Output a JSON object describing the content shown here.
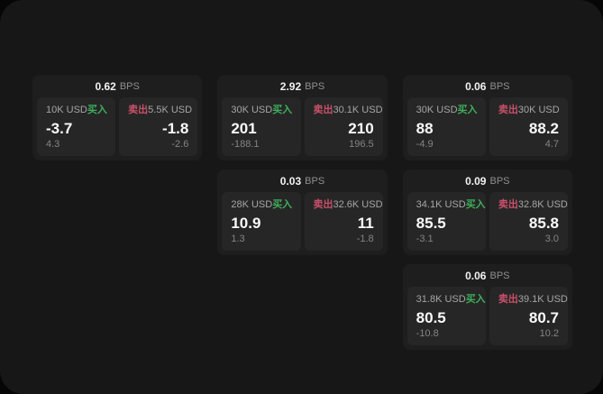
{
  "colors": {
    "buy_green": "#3fae5c",
    "sell_red": "#c9506a",
    "page_bg": "#171717",
    "card_bg": "#1e1e1e",
    "panel_bg": "#262626"
  },
  "cards": [
    {
      "row": 1,
      "col": 1,
      "bps": "0.62",
      "bps_unit": "BPS",
      "buy": {
        "amount": "10K USD",
        "side": "买入",
        "value": "-3.7",
        "sub": "4.3"
      },
      "sell": {
        "side": "卖出",
        "amount": "5.5K USD",
        "value": "-1.8",
        "sub": "-2.6"
      }
    },
    {
      "row": 1,
      "col": 2,
      "bps": "2.92",
      "bps_unit": "BPS",
      "buy": {
        "amount": "30K USD",
        "side": "买入",
        "value": "201",
        "sub": "-188.1"
      },
      "sell": {
        "side": "卖出",
        "amount": "30.1K USD",
        "value": "210",
        "sub": "196.5"
      }
    },
    {
      "row": 1,
      "col": 3,
      "bps": "0.06",
      "bps_unit": "BPS",
      "buy": {
        "amount": "30K USD",
        "side": "买入",
        "value": "88",
        "sub": "-4.9"
      },
      "sell": {
        "side": "卖出",
        "amount": "30K USD",
        "value": "88.2",
        "sub": "4.7"
      }
    },
    {
      "row": 2,
      "col": 2,
      "bps": "0.03",
      "bps_unit": "BPS",
      "buy": {
        "amount": "28K USD",
        "side": "买入",
        "value": "10.9",
        "sub": "1.3"
      },
      "sell": {
        "side": "卖出",
        "amount": "32.6K USD",
        "value": "11",
        "sub": "-1.8"
      }
    },
    {
      "row": 2,
      "col": 3,
      "bps": "0.09",
      "bps_unit": "BPS",
      "buy": {
        "amount": "34.1K USD",
        "side": "买入",
        "value": "85.5",
        "sub": "-3.1"
      },
      "sell": {
        "side": "卖出",
        "amount": "32.8K USD",
        "value": "85.8",
        "sub": "3.0"
      }
    },
    {
      "row": 3,
      "col": 3,
      "bps": "0.06",
      "bps_unit": "BPS",
      "buy": {
        "amount": "31.8K USD",
        "side": "买入",
        "value": "80.5",
        "sub": "-10.8"
      },
      "sell": {
        "side": "卖出",
        "amount": "39.1K USD",
        "value": "80.7",
        "sub": "10.2"
      }
    }
  ]
}
